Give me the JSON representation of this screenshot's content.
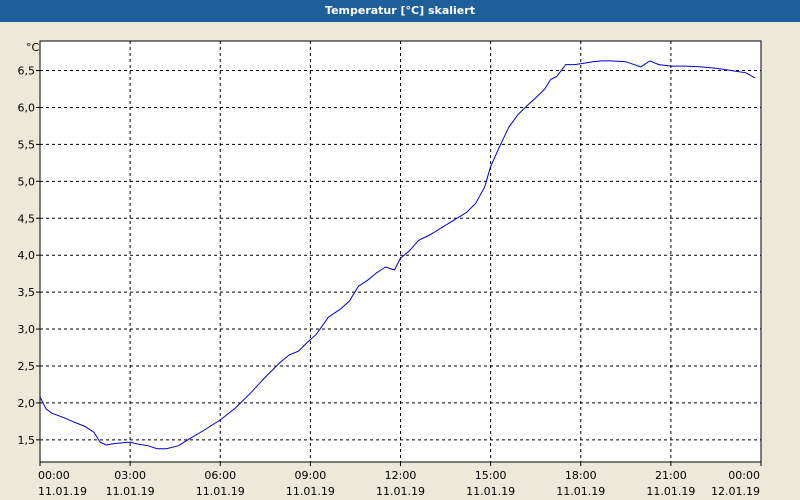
{
  "window": {
    "title": "Temperatur [°C] skaliert",
    "background": "#ece9d8",
    "title_bar_color": "#1f5f99"
  },
  "chart_data": {
    "type": "line",
    "title": "Temperatur [°C] skaliert",
    "ylabel": "°C",
    "xlabel": "",
    "ylim": [
      1.2,
      6.9
    ],
    "xlim": [
      0,
      24
    ],
    "grid": true,
    "line_color": "#0000cc",
    "yticks": [
      "1,5",
      "2,0",
      "2,5",
      "3,0",
      "3,5",
      "4,0",
      "4,5",
      "5,0",
      "5,5",
      "6,0",
      "6,5"
    ],
    "ytick_values": [
      1.5,
      2.0,
      2.5,
      3.0,
      3.5,
      4.0,
      4.5,
      5.0,
      5.5,
      6.0,
      6.5
    ],
    "xticks": [
      {
        "time": "00:00",
        "date": "11.01.19"
      },
      {
        "time": "03:00",
        "date": "11.01.19"
      },
      {
        "time": "06:00",
        "date": "11.01.19"
      },
      {
        "time": "09:00",
        "date": "11.01.19"
      },
      {
        "time": "12:00",
        "date": "11.01.19"
      },
      {
        "time": "15:00",
        "date": "11.01.19"
      },
      {
        "time": "18:00",
        "date": "11.01.19"
      },
      {
        "time": "21:00",
        "date": "11.01.19"
      },
      {
        "time": "00:00",
        "date": "12.01.19"
      }
    ],
    "xtick_hours": [
      0,
      3,
      6,
      9,
      12,
      15,
      18,
      21,
      24
    ],
    "series": [
      {
        "x": [
          0,
          0.2,
          0.4,
          0.8,
          1.2,
          1.5,
          1.8,
          2.0,
          2.2,
          2.5,
          3.0,
          3.3,
          3.6,
          3.9,
          4.2,
          4.6,
          5.0,
          5.5,
          6.0,
          6.5,
          7.0,
          7.5,
          8.0,
          8.3,
          8.6,
          8.9,
          9.2,
          9.6,
          10.0,
          10.3,
          10.6,
          10.9,
          11.2,
          11.5,
          11.8,
          12.0,
          12.3,
          12.6,
          13.0,
          13.4,
          13.8,
          14.2,
          14.5,
          14.8,
          15.0,
          15.3,
          15.6,
          15.9,
          16.2,
          16.5,
          16.8,
          17.0,
          17.2,
          17.5,
          17.8,
          18.1,
          18.4,
          18.7,
          19.0,
          19.5,
          20.0,
          20.3,
          20.6,
          21.0,
          21.5,
          22.0,
          22.5,
          23.0,
          23.5,
          23.8
        ],
        "y": [
          2.08,
          1.92,
          1.86,
          1.8,
          1.73,
          1.68,
          1.6,
          1.47,
          1.43,
          1.45,
          1.47,
          1.44,
          1.42,
          1.38,
          1.38,
          1.42,
          1.52,
          1.64,
          1.77,
          1.93,
          2.13,
          2.35,
          2.55,
          2.65,
          2.7,
          2.82,
          2.93,
          3.16,
          3.27,
          3.38,
          3.58,
          3.66,
          3.76,
          3.84,
          3.8,
          3.96,
          4.06,
          4.2,
          4.28,
          4.38,
          4.48,
          4.58,
          4.7,
          4.92,
          5.2,
          5.47,
          5.73,
          5.9,
          6.02,
          6.13,
          6.25,
          6.38,
          6.42,
          6.58,
          6.58,
          6.6,
          6.62,
          6.63,
          6.63,
          6.62,
          6.55,
          6.63,
          6.58,
          6.56,
          6.56,
          6.55,
          6.53,
          6.5,
          6.47,
          6.4
        ]
      }
    ]
  }
}
